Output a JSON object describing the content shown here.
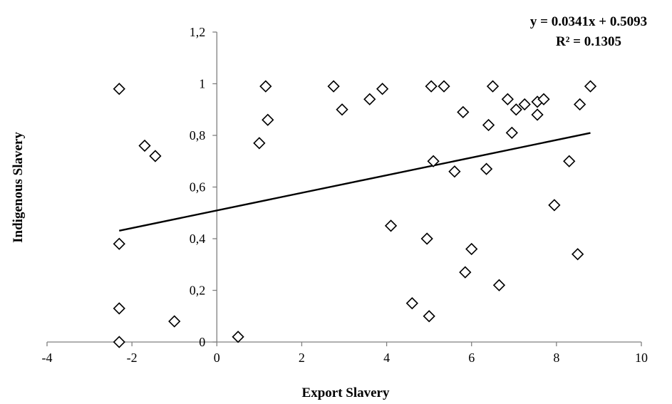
{
  "chart_data": {
    "type": "scatter",
    "xlabel": "Export Slavery",
    "ylabel": "Indigenous Slavery",
    "xlim": [
      -4,
      10
    ],
    "ylim": [
      0,
      1.2
    ],
    "x_ticks": [
      "-4",
      "-2",
      "0",
      "2",
      "4",
      "6",
      "8",
      "10"
    ],
    "y_ticks": [
      "0",
      "0,2",
      "0,4",
      "0,6",
      "0,8",
      "1",
      "1,2"
    ],
    "grid": false,
    "legend": "none",
    "marker": "diamond-open",
    "trendline": {
      "type": "linear",
      "slope": 0.0341,
      "intercept": 0.5093,
      "x_range": [
        -2.3,
        8.8
      ],
      "equation_label": "y = 0.0341x + 0.5093",
      "r2_label": "R² = 0.1305"
    },
    "points": [
      {
        "x": -2.3,
        "y": 0.98
      },
      {
        "x": -2.3,
        "y": 0.38
      },
      {
        "x": -2.3,
        "y": 0.13
      },
      {
        "x": -2.3,
        "y": 0.0
      },
      {
        "x": -1.7,
        "y": 0.76
      },
      {
        "x": -1.45,
        "y": 0.72
      },
      {
        "x": -1.0,
        "y": 0.08
      },
      {
        "x": 0.5,
        "y": 0.02
      },
      {
        "x": 1.0,
        "y": 0.77
      },
      {
        "x": 1.15,
        "y": 0.99
      },
      {
        "x": 1.2,
        "y": 0.86
      },
      {
        "x": 2.75,
        "y": 0.99
      },
      {
        "x": 2.95,
        "y": 0.9
      },
      {
        "x": 3.6,
        "y": 0.94
      },
      {
        "x": 3.9,
        "y": 0.98
      },
      {
        "x": 4.1,
        "y": 0.45
      },
      {
        "x": 4.6,
        "y": 0.15
      },
      {
        "x": 4.95,
        "y": 0.4
      },
      {
        "x": 5.0,
        "y": 0.1
      },
      {
        "x": 5.05,
        "y": 0.99
      },
      {
        "x": 5.1,
        "y": 0.7
      },
      {
        "x": 5.35,
        "y": 0.99
      },
      {
        "x": 5.6,
        "y": 0.66
      },
      {
        "x": 5.8,
        "y": 0.89
      },
      {
        "x": 5.85,
        "y": 0.27
      },
      {
        "x": 6.0,
        "y": 0.36
      },
      {
        "x": 6.35,
        "y": 0.67
      },
      {
        "x": 6.4,
        "y": 0.84
      },
      {
        "x": 6.5,
        "y": 0.99
      },
      {
        "x": 6.65,
        "y": 0.22
      },
      {
        "x": 6.85,
        "y": 0.94
      },
      {
        "x": 6.95,
        "y": 0.81
      },
      {
        "x": 7.05,
        "y": 0.9
      },
      {
        "x": 7.25,
        "y": 0.92
      },
      {
        "x": 7.55,
        "y": 0.93
      },
      {
        "x": 7.55,
        "y": 0.88
      },
      {
        "x": 7.7,
        "y": 0.94
      },
      {
        "x": 7.95,
        "y": 0.53
      },
      {
        "x": 8.3,
        "y": 0.7
      },
      {
        "x": 8.5,
        "y": 0.34
      },
      {
        "x": 8.55,
        "y": 0.92
      },
      {
        "x": 8.8,
        "y": 0.99
      }
    ]
  }
}
